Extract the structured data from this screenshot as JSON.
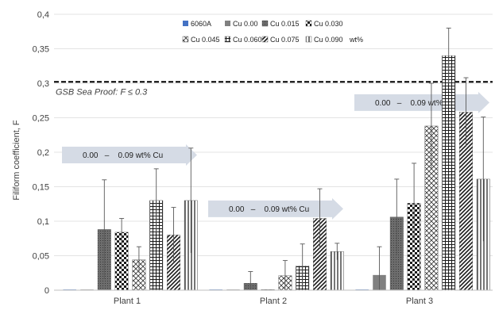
{
  "chart_data": {
    "type": "bar",
    "title": "",
    "xlabel": "",
    "ylabel": "Filiform coefficient, F",
    "ylim": [
      0,
      0.4
    ],
    "yticks": [
      "0",
      "0,05",
      "0,1",
      "0,15",
      "0,2",
      "0,25",
      "0,3",
      "0,35",
      "0,4"
    ],
    "ytick_values": [
      0,
      0.05,
      0.1,
      0.15,
      0.2,
      0.25,
      0.3,
      0.35,
      0.4
    ],
    "grid": true,
    "legend_position": "top",
    "legend_suffix": "wt%",
    "categories": [
      "Plant 1",
      "Plant 2",
      "Plant 3"
    ],
    "series": [
      {
        "name": "6060A",
        "pattern": "solid-blue",
        "values": [
          0.0,
          0.0,
          0.0
        ],
        "errors": [
          0.0,
          0.0,
          0.0
        ]
      },
      {
        "name": "Cu 0.00",
        "pattern": "solid-gray",
        "values": [
          0.0,
          0.0,
          0.022
        ],
        "errors": [
          0.0,
          0.0,
          0.041
        ]
      },
      {
        "name": "Cu 0.015",
        "pattern": "dots",
        "values": [
          0.088,
          0.01,
          0.106
        ],
        "errors": [
          0.072,
          0.017,
          0.055
        ]
      },
      {
        "name": "Cu 0.030",
        "pattern": "checker",
        "values": [
          0.084,
          0.0,
          0.126
        ],
        "errors": [
          0.02,
          0.0,
          0.058
        ]
      },
      {
        "name": "Cu 0.045",
        "pattern": "diamond",
        "values": [
          0.044,
          0.021,
          0.238
        ],
        "errors": [
          0.019,
          0.022,
          0.062
        ]
      },
      {
        "name": "Cu 0.060",
        "pattern": "grid",
        "values": [
          0.13,
          0.035,
          0.34
        ],
        "errors": [
          0.046,
          0.032,
          0.04
        ]
      },
      {
        "name": "Cu 0.075",
        "pattern": "diagonal",
        "values": [
          0.08,
          0.104,
          0.258
        ],
        "errors": [
          0.04,
          0.043,
          0.05
        ]
      },
      {
        "name": "Cu 0.090",
        "pattern": "vertical",
        "values": [
          0.13,
          0.056,
          0.161
        ],
        "errors": [
          0.076,
          0.012,
          0.09
        ]
      }
    ],
    "reference_line": {
      "value": 0.302,
      "label": "GSB Sea Proof: F ≤ 0.3"
    },
    "annotations": [
      {
        "text": "0.00   –    0.09 wt% Cu",
        "category": "Plant 1",
        "y": 0.196
      },
      {
        "text": "0.00   –    0.09 wt% Cu",
        "category": "Plant 2",
        "y": 0.118
      },
      {
        "text": "0.00   –    0.09 wt% Cu",
        "category": "Plant 3",
        "y": 0.272
      }
    ]
  },
  "colors": {
    "axis": "#bfbfbf",
    "grid": "#e3e3e3",
    "bar_blue": "#4472c4",
    "bar_gray": "#808080",
    "pattern_dark": "#1a1a1a",
    "arrow_fill": "#d5dbe5",
    "error_bar": "#595959",
    "reference": "#000000"
  }
}
